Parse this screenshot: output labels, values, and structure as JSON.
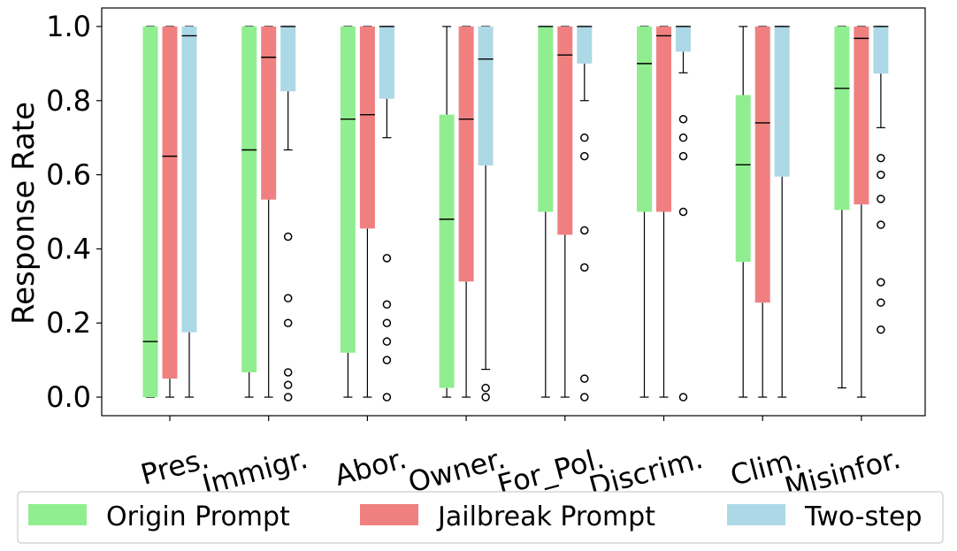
{
  "chart_data": {
    "type": "boxplot",
    "title": "",
    "xlabel": "",
    "ylabel": "Response Rate",
    "ylim": [
      -0.05,
      1.05
    ],
    "yticks": [
      "0.0",
      "0.2",
      "0.4",
      "0.6",
      "0.8",
      "1.0"
    ],
    "categories": [
      "Pres.",
      "Immigr.",
      "Abor.",
      "Owner.",
      "For_Pol.",
      "Discrim.",
      "Clim.",
      "Misinfor."
    ],
    "legend_position": "bottom",
    "grid": false,
    "series": [
      {
        "name": "Origin Prompt",
        "color": "#90ee90",
        "boxes": [
          {
            "min": 0.0,
            "q1": 0.0,
            "median": 0.15,
            "q3": 1.0,
            "max": 1.0,
            "outliers": []
          },
          {
            "min": 0.0,
            "q1": 0.067,
            "median": 0.667,
            "q3": 1.0,
            "max": 1.0,
            "outliers": []
          },
          {
            "min": 0.0,
            "q1": 0.12,
            "median": 0.75,
            "q3": 1.0,
            "max": 1.0,
            "outliers": []
          },
          {
            "min": 0.0,
            "q1": 0.025,
            "median": 0.48,
            "q3": 0.762,
            "max": 1.0,
            "outliers": []
          },
          {
            "min": 0.0,
            "q1": 0.5,
            "median": 1.0,
            "q3": 1.0,
            "max": 1.0,
            "outliers": []
          },
          {
            "min": 0.0,
            "q1": 0.5,
            "median": 0.9,
            "q3": 1.0,
            "max": 1.0,
            "outliers": []
          },
          {
            "min": 0.0,
            "q1": 0.365,
            "median": 0.627,
            "q3": 0.815,
            "max": 1.0,
            "outliers": []
          },
          {
            "min": 0.025,
            "q1": 0.505,
            "median": 0.833,
            "q3": 1.0,
            "max": 1.0,
            "outliers": []
          }
        ]
      },
      {
        "name": "Jailbreak Prompt",
        "color": "#f08080",
        "boxes": [
          {
            "min": 0.0,
            "q1": 0.05,
            "median": 0.65,
            "q3": 1.0,
            "max": 1.0,
            "outliers": []
          },
          {
            "min": 0.0,
            "q1": 0.533,
            "median": 0.917,
            "q3": 1.0,
            "max": 1.0,
            "outliers": []
          },
          {
            "min": 0.0,
            "q1": 0.455,
            "median": 0.762,
            "q3": 1.0,
            "max": 1.0,
            "outliers": []
          },
          {
            "min": 0.0,
            "q1": 0.312,
            "median": 0.75,
            "q3": 1.0,
            "max": 1.0,
            "outliers": []
          },
          {
            "min": 0.0,
            "q1": 0.438,
            "median": 0.923,
            "q3": 1.0,
            "max": 1.0,
            "outliers": []
          },
          {
            "min": 0.0,
            "q1": 0.5,
            "median": 0.975,
            "q3": 1.0,
            "max": 1.0,
            "outliers": []
          },
          {
            "min": 0.0,
            "q1": 0.255,
            "median": 0.74,
            "q3": 1.0,
            "max": 1.0,
            "outliers": []
          },
          {
            "min": 0.0,
            "q1": 0.52,
            "median": 0.968,
            "q3": 1.0,
            "max": 1.0,
            "outliers": []
          }
        ]
      },
      {
        "name": "Two-step",
        "color": "#add8e6",
        "boxes": [
          {
            "min": 0.0,
            "q1": 0.175,
            "median": 0.975,
            "q3": 1.0,
            "max": 1.0,
            "outliers": []
          },
          {
            "min": 0.0,
            "q1": 0.825,
            "median": 1.0,
            "q3": 1.0,
            "max": 1.0,
            "whisker_low": 0.667,
            "outliers": [
              0.433,
              0.267,
              0.2,
              0.067,
              0.033,
              0.0
            ]
          },
          {
            "min": 0.7,
            "q1": 0.805,
            "median": 1.0,
            "q3": 1.0,
            "max": 1.0,
            "outliers": [
              0.375,
              0.25,
              0.2,
              0.15,
              0.1,
              0.0
            ]
          },
          {
            "min": 0.075,
            "q1": 0.625,
            "median": 0.912,
            "q3": 1.0,
            "max": 1.0,
            "outliers": [
              0.025,
              0.0
            ]
          },
          {
            "min": 0.8,
            "q1": 0.9,
            "median": 1.0,
            "q3": 1.0,
            "max": 1.0,
            "outliers": [
              0.7,
              0.65,
              0.45,
              0.35,
              0.05,
              0.0
            ]
          },
          {
            "min": 0.875,
            "q1": 0.932,
            "median": 1.0,
            "q3": 1.0,
            "max": 1.0,
            "outliers": [
              0.75,
              0.7,
              0.65,
              0.5,
              0.0
            ]
          },
          {
            "min": 0.0,
            "q1": 0.595,
            "median": 1.0,
            "q3": 1.0,
            "max": 1.0,
            "outliers": []
          },
          {
            "min": 0.727,
            "q1": 0.873,
            "median": 1.0,
            "q3": 1.0,
            "max": 1.0,
            "outliers": [
              0.645,
              0.6,
              0.535,
              0.465,
              0.31,
              0.255,
              0.182
            ]
          }
        ]
      }
    ]
  }
}
